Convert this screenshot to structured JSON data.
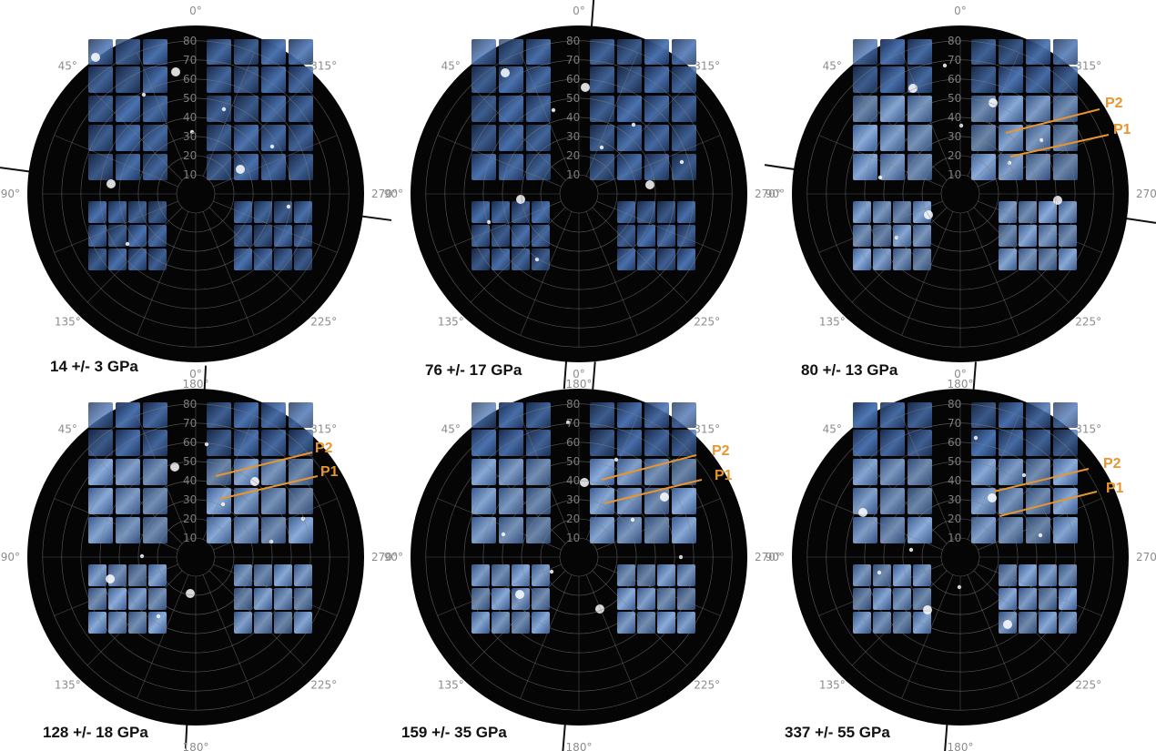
{
  "figure": {
    "panels": [
      {
        "pressure": "14 +/- 3 GPa",
        "peaks": [],
        "tilt_deg": 12
      },
      {
        "pressure": "76 +/- 17 GPa",
        "peaks": [],
        "tilt_deg": 5
      },
      {
        "pressure": "80 +/- 13 GPa",
        "peaks": [
          "P2",
          "P1"
        ],
        "tilt_deg": 16
      },
      {
        "pressure": "128 +/- 18 GPa",
        "peaks": [
          "P2",
          "P1"
        ],
        "tilt_deg": 12
      },
      {
        "pressure": "159 +/- 35 GPa",
        "peaks": [
          "P2",
          "P1"
        ],
        "tilt_deg": 3
      },
      {
        "pressure": "337 +/- 55 GPa",
        "peaks": [
          "P2",
          "P1"
        ],
        "tilt_deg": 4
      }
    ],
    "azimuth_labels": [
      "0°",
      "315°",
      "270°",
      "225°",
      "180°",
      "135°",
      "90°",
      "45°"
    ],
    "radial_labels": [
      "10",
      "20",
      "30",
      "40",
      "50",
      "60",
      "70",
      "80"
    ],
    "colors": {
      "background_disc": "#050505",
      "detector_blue": "#4f79b8",
      "grid": "#7f7f7f",
      "peak_annotation": "#e8952f",
      "tilt_line": "#111111"
    }
  }
}
